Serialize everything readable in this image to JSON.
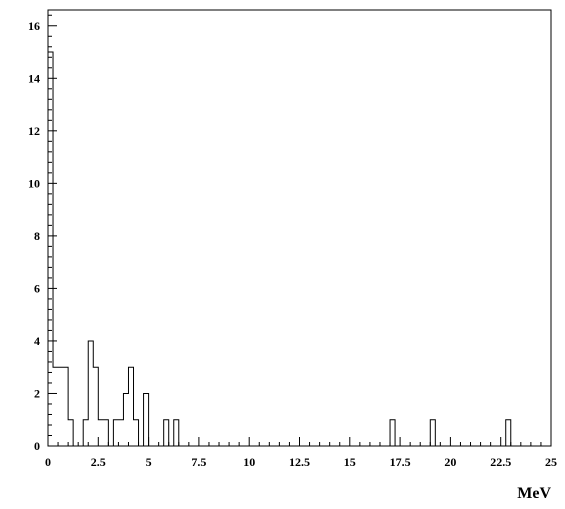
{
  "chart_data": {
    "type": "bar",
    "style": "step-histogram",
    "title": "",
    "xlabel": "MeV",
    "ylabel": "",
    "xlim": [
      0,
      25
    ],
    "ylim": [
      0,
      16.6
    ],
    "bin_width": 0.25,
    "x_ticks": [
      0,
      2.5,
      5,
      7.5,
      10,
      12.5,
      15,
      17.5,
      20,
      22.5,
      25
    ],
    "x_tick_labels": [
      "0",
      "2.5",
      "5",
      "7.5",
      "10",
      "12.5",
      "15",
      "17.5",
      "20",
      "22.5",
      "25"
    ],
    "y_ticks": [
      0,
      2,
      4,
      6,
      8,
      10,
      12,
      14,
      16
    ],
    "y_tick_labels": [
      "0",
      "2",
      "4",
      "6",
      "8",
      "10",
      "12",
      "14",
      "16"
    ],
    "grid": false,
    "legend": "none",
    "series": [
      {
        "bins": [
          {
            "x0": 0.0,
            "x1": 0.25,
            "count": 15
          },
          {
            "x0": 0.25,
            "x1": 1.0,
            "count": 3
          },
          {
            "x0": 1.0,
            "x1": 1.25,
            "count": 1
          },
          {
            "x0": 1.25,
            "x1": 1.75,
            "count": 0
          },
          {
            "x0": 1.75,
            "x1": 2.0,
            "count": 1
          },
          {
            "x0": 2.0,
            "x1": 2.25,
            "count": 4
          },
          {
            "x0": 2.25,
            "x1": 2.5,
            "count": 3
          },
          {
            "x0": 2.5,
            "x1": 3.0,
            "count": 1
          },
          {
            "x0": 3.0,
            "x1": 3.25,
            "count": 0
          },
          {
            "x0": 3.25,
            "x1": 3.75,
            "count": 1
          },
          {
            "x0": 3.75,
            "x1": 4.0,
            "count": 2
          },
          {
            "x0": 4.0,
            "x1": 4.25,
            "count": 3
          },
          {
            "x0": 4.25,
            "x1": 4.5,
            "count": 1
          },
          {
            "x0": 4.5,
            "x1": 4.75,
            "count": 0
          },
          {
            "x0": 4.75,
            "x1": 5.0,
            "count": 2
          },
          {
            "x0": 5.0,
            "x1": 5.75,
            "count": 0
          },
          {
            "x0": 5.75,
            "x1": 6.0,
            "count": 1
          },
          {
            "x0": 6.0,
            "x1": 6.25,
            "count": 0
          },
          {
            "x0": 6.25,
            "x1": 6.5,
            "count": 1
          },
          {
            "x0": 6.5,
            "x1": 17.0,
            "count": 0
          },
          {
            "x0": 17.0,
            "x1": 17.25,
            "count": 1
          },
          {
            "x0": 17.25,
            "x1": 19.0,
            "count": 0
          },
          {
            "x0": 19.0,
            "x1": 19.25,
            "count": 1
          },
          {
            "x0": 19.25,
            "x1": 22.75,
            "count": 0
          },
          {
            "x0": 22.75,
            "x1": 23.0,
            "count": 1
          },
          {
            "x0": 23.0,
            "x1": 25.0,
            "count": 0
          }
        ]
      }
    ],
    "stroke_color": "#000000"
  }
}
